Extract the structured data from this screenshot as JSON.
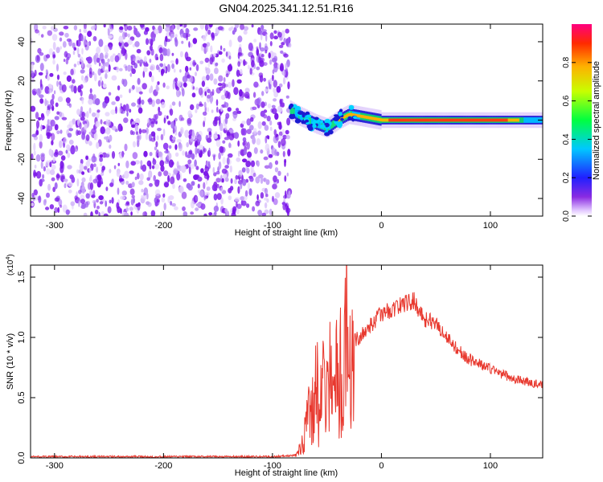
{
  "figure_title": "GN04.2025.341.12.51.R16",
  "chart_data": [
    {
      "type": "heatmap",
      "title": "GN04.2025.341.12.51.R16",
      "xlabel": "Height of straight line (km)",
      "ylabel": "Frequency (Hz)",
      "xlim": [
        -322,
        148
      ],
      "ylim": [
        -49,
        49
      ],
      "x_ticks": [
        -300,
        -200,
        -100,
        0,
        100
      ],
      "x_tick_labels": [
        "-300",
        "-200",
        "-100",
        "0",
        "100"
      ],
      "y_ticks": [
        -40,
        -20,
        0,
        20,
        40
      ],
      "y_tick_labels": [
        "-40",
        "-20",
        "0",
        "20",
        "40"
      ],
      "noise_region_x": [
        -322,
        -84
      ],
      "signal_band": [
        {
          "x": -84,
          "freq": 5
        },
        {
          "x": -75,
          "freq": 2
        },
        {
          "x": -60,
          "freq": -2
        },
        {
          "x": -50,
          "freq": -4
        },
        {
          "x": -40,
          "freq": 0
        },
        {
          "x": -30,
          "freq": 3
        },
        {
          "x": -20,
          "freq": 2
        },
        {
          "x": 0,
          "freq": 0
        },
        {
          "x": 50,
          "freq": 0
        },
        {
          "x": 100,
          "freq": 0
        },
        {
          "x": 148,
          "freq": 0
        }
      ],
      "colorbar": {
        "label": "Normalized spectral amplitude",
        "range": [
          0,
          1
        ],
        "ticks": [
          0.0,
          0.2,
          0.4,
          0.6,
          0.8
        ],
        "tick_labels": [
          "0.0",
          "0.2",
          "0.4",
          "0.6",
          "0.8"
        ]
      },
      "grid": false
    },
    {
      "type": "line",
      "xlabel": "Height of straight line (km)",
      "ylabel": "SNR (10 * v/v)",
      "y_multiplier_base": "(x10",
      "y_multiplier_exp": "4",
      "y_multiplier_close": ")",
      "xlim": [
        -322,
        148
      ],
      "ylim": [
        0,
        1.6
      ],
      "x_ticks": [
        -300,
        -200,
        -100,
        0,
        100
      ],
      "x_tick_labels": [
        "-300",
        "-200",
        "-100",
        "0",
        "100"
      ],
      "y_ticks": [
        0.0,
        0.5,
        1.0,
        1.5
      ],
      "y_tick_labels": [
        "0.0",
        "0.5",
        "1.0",
        "1.5"
      ],
      "series": [
        {
          "color": "#e8392f",
          "x": [
            -322,
            -250,
            -150,
            -100,
            -80,
            -72,
            -66,
            -60,
            -55,
            -50,
            -45,
            -40,
            -35,
            -32,
            -30,
            -20,
            -10,
            0,
            10,
            20,
            30,
            40,
            50,
            60,
            70,
            80,
            90,
            100,
            110,
            120,
            130,
            148
          ],
          "y": [
            0.01,
            0.01,
            0.01,
            0.01,
            0.02,
            0.15,
            0.5,
            0.7,
            0.8,
            0.8,
            0.85,
            1.0,
            0.9,
            1.55,
            0.95,
            1.0,
            1.1,
            1.2,
            1.23,
            1.28,
            1.3,
            1.15,
            1.12,
            1.0,
            0.9,
            0.82,
            0.78,
            0.74,
            0.7,
            0.66,
            0.64,
            0.6
          ]
        }
      ],
      "grid": false
    }
  ]
}
